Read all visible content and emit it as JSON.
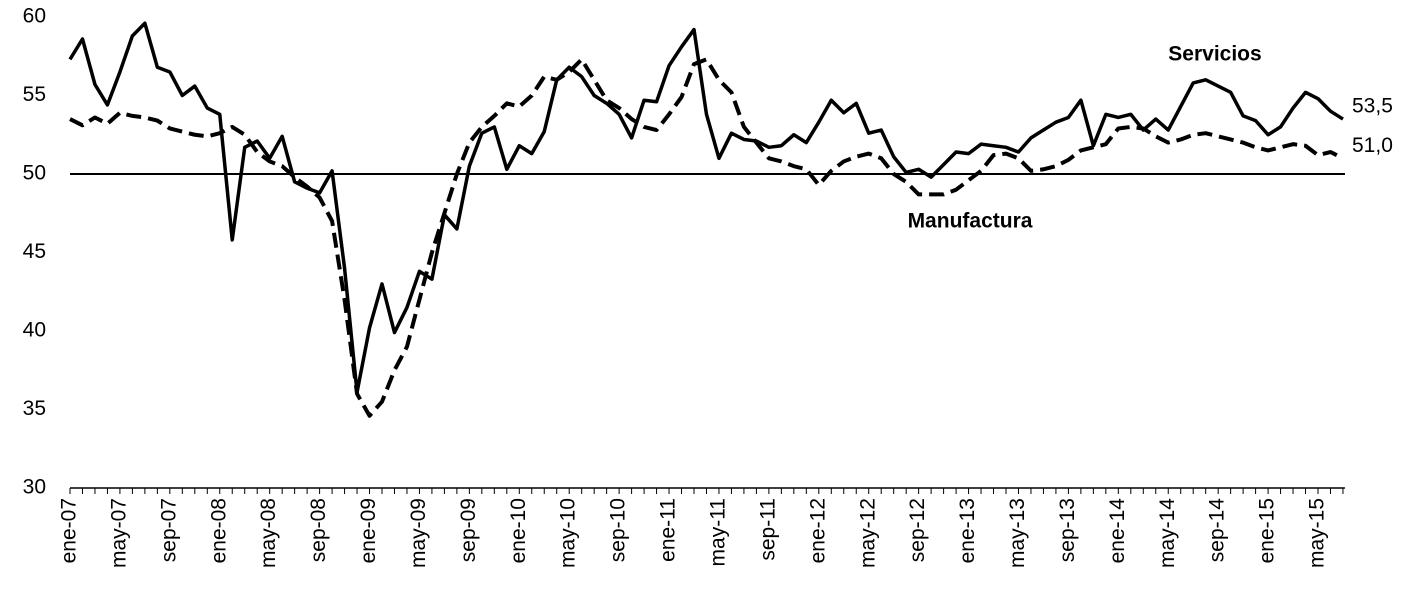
{
  "chart_data": {
    "type": "line",
    "categories": [
      "ene-07",
      null,
      null,
      null,
      "may-07",
      null,
      null,
      null,
      "sep-07",
      null,
      null,
      null,
      "ene-08",
      null,
      null,
      null,
      "may-08",
      null,
      null,
      null,
      "sep-08",
      null,
      null,
      null,
      "ene-09",
      null,
      null,
      null,
      "may-09",
      null,
      null,
      null,
      "sep-09",
      null,
      null,
      null,
      "ene-10",
      null,
      null,
      null,
      "may-10",
      null,
      null,
      null,
      "sep-10",
      null,
      null,
      null,
      "ene-11",
      null,
      null,
      null,
      "may-11",
      null,
      null,
      null,
      "sep-11",
      null,
      null,
      null,
      "ene-12",
      null,
      null,
      null,
      "may-12",
      null,
      null,
      null,
      "sep-12",
      null,
      null,
      null,
      "ene-13",
      null,
      null,
      null,
      "may-13",
      null,
      null,
      null,
      "sep-13",
      null,
      null,
      null,
      "ene-14",
      null,
      null,
      null,
      "may-14",
      null,
      null,
      null,
      "sep-14",
      null,
      null,
      null,
      "ene-15",
      null,
      null,
      null,
      "may-15",
      null,
      null
    ],
    "series": [
      {
        "name": "Servicios",
        "color": "#000000",
        "dash": false,
        "values": [
          57.3,
          58.6,
          55.7,
          54.4,
          56.5,
          58.8,
          59.6,
          56.8,
          56.5,
          55.0,
          55.6,
          54.2,
          53.8,
          45.8,
          51.7,
          52.1,
          51.0,
          52.4,
          49.5,
          49.1,
          48.8,
          50.2,
          44.0,
          36.1,
          40.2,
          43.0,
          39.9,
          41.5,
          43.8,
          43.3,
          47.4,
          46.5,
          50.5,
          52.6,
          53.0,
          50.3,
          51.8,
          51.3,
          52.7,
          56.0,
          56.8,
          56.2,
          55.0,
          54.5,
          53.8,
          52.3,
          54.7,
          54.6,
          56.9,
          58.1,
          59.2,
          53.8,
          51.0,
          52.6,
          52.2,
          52.1,
          51.7,
          51.8,
          52.5,
          52.0,
          53.3,
          54.7,
          53.9,
          54.5,
          52.6,
          52.8,
          51.1,
          50.1,
          50.3,
          49.8,
          50.6,
          51.4,
          51.3,
          51.9,
          51.8,
          51.7,
          51.4,
          52.3,
          52.8,
          53.3,
          53.6,
          54.7,
          51.8,
          53.8,
          53.6,
          53.8,
          52.8,
          53.5,
          52.8,
          54.3,
          55.8,
          56.0,
          55.6,
          55.2,
          53.7,
          53.4,
          52.5,
          53.0,
          54.2,
          55.2,
          54.8,
          54.0,
          53.5
        ],
        "value_labels": [
          null,
          null,
          null,
          null,
          null,
          null,
          null,
          null,
          null,
          null,
          null,
          null,
          null,
          null,
          null,
          null,
          null,
          null,
          null,
          null,
          null,
          null,
          null,
          null,
          null,
          null,
          null,
          null,
          null,
          null,
          null,
          null,
          null,
          null,
          null,
          null,
          null,
          null,
          null,
          null,
          null,
          null,
          null,
          null,
          null,
          null,
          null,
          null,
          null,
          null,
          null,
          null,
          null,
          null,
          null,
          null,
          null,
          null,
          null,
          null,
          null,
          null,
          null,
          null,
          null,
          null,
          null,
          null,
          null,
          null,
          null,
          null,
          null,
          null,
          null,
          null,
          null,
          null,
          null,
          null,
          null,
          null,
          null,
          null,
          null,
          null,
          null,
          null,
          null,
          null,
          null,
          null,
          null,
          null,
          null,
          null,
          null,
          null,
          null,
          null,
          null,
          null,
          "53,5"
        ]
      },
      {
        "name": "Manufactura",
        "color": "#000000",
        "dash": true,
        "values": [
          53.5,
          53.1,
          53.6,
          53.2,
          53.9,
          53.7,
          53.6,
          53.4,
          52.9,
          52.7,
          52.5,
          52.4,
          52.6,
          53.0,
          52.5,
          51.4,
          50.8,
          50.5,
          49.8,
          49.2,
          48.5,
          47.0,
          42.0,
          36.0,
          34.6,
          35.5,
          37.5,
          39.0,
          42.0,
          45.0,
          47.5,
          50.0,
          52.0,
          53.0,
          53.7,
          54.5,
          54.3,
          55.0,
          56.2,
          56.0,
          56.5,
          57.3,
          56.0,
          54.7,
          54.2,
          53.5,
          53.0,
          52.8,
          53.8,
          54.9,
          57.0,
          57.3,
          56.0,
          55.2,
          53.0,
          52.0,
          51.0,
          50.8,
          50.5,
          50.3,
          49.3,
          50.2,
          50.8,
          51.1,
          51.3,
          51.0,
          50.0,
          49.5,
          48.7,
          48.7,
          48.7,
          49.0,
          49.6,
          50.2,
          51.2,
          51.3,
          51.0,
          50.2,
          50.3,
          50.5,
          50.9,
          51.5,
          51.7,
          51.9,
          52.9,
          53.0,
          52.9,
          52.4,
          52.0,
          52.2,
          52.5,
          52.6,
          52.4,
          52.2,
          52.0,
          51.7,
          51.5,
          51.7,
          51.9,
          51.8,
          51.2,
          51.4,
          51.0
        ],
        "value_labels": [
          null,
          null,
          null,
          null,
          null,
          null,
          null,
          null,
          null,
          null,
          null,
          null,
          null,
          null,
          null,
          null,
          null,
          null,
          null,
          null,
          null,
          null,
          null,
          null,
          null,
          null,
          null,
          null,
          null,
          null,
          null,
          null,
          null,
          null,
          null,
          null,
          null,
          null,
          null,
          null,
          null,
          null,
          null,
          null,
          null,
          null,
          null,
          null,
          null,
          null,
          null,
          null,
          null,
          null,
          null,
          null,
          null,
          null,
          null,
          null,
          null,
          null,
          null,
          null,
          null,
          null,
          null,
          null,
          null,
          null,
          null,
          null,
          null,
          null,
          null,
          null,
          null,
          null,
          null,
          null,
          null,
          null,
          null,
          null,
          null,
          null,
          null,
          null,
          null,
          null,
          null,
          null,
          null,
          null,
          null,
          null,
          null,
          null,
          null,
          null,
          null,
          null,
          "51,0"
        ]
      }
    ],
    "ylim": [
      30,
      60
    ],
    "yticks": [
      30,
      35,
      40,
      45,
      50,
      55,
      60
    ],
    "reference_line": 50,
    "grid": false
  }
}
